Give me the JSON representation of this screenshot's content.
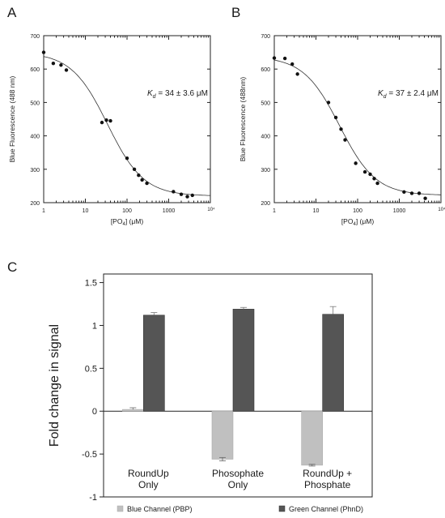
{
  "chart_data": [
    {
      "panel_label": "A",
      "type": "scatter",
      "x_scale": "log",
      "xlim": [
        1,
        10000
      ],
      "ylim": [
        200,
        700
      ],
      "x_ticks": [
        "1",
        "10",
        "100",
        "1000",
        "10⁴"
      ],
      "y_ticks": [
        "200",
        "300",
        "400",
        "500",
        "600",
        "700"
      ],
      "xlabel": "[PO₄] (μM)",
      "ylabel": "Blue Fluorescence (488 nm)",
      "annotation": "Kd = 34 ± 3.6 μM",
      "annotation_parts": {
        "symbol": "K",
        "subscript": "d",
        "value": " = 34 ± 3.6 μM"
      },
      "xlabel_parts": {
        "pre": "[PO",
        "subscript": "4",
        "post": "] (μM)"
      },
      "points": [
        {
          "x": 1,
          "y": 650
        },
        {
          "x": 1.7,
          "y": 617
        },
        {
          "x": 2.6,
          "y": 612
        },
        {
          "x": 3.5,
          "y": 597
        },
        {
          "x": 25,
          "y": 440
        },
        {
          "x": 32,
          "y": 447
        },
        {
          "x": 40,
          "y": 445
        },
        {
          "x": 100,
          "y": 333
        },
        {
          "x": 150,
          "y": 300
        },
        {
          "x": 190,
          "y": 282
        },
        {
          "x": 230,
          "y": 268
        },
        {
          "x": 300,
          "y": 258
        },
        {
          "x": 1300,
          "y": 233
        },
        {
          "x": 2000,
          "y": 225
        },
        {
          "x": 2800,
          "y": 218
        },
        {
          "x": 3700,
          "y": 222
        }
      ],
      "fit": {
        "kd": 34,
        "top": 650,
        "bottom": 220,
        "hill": 1.0
      }
    },
    {
      "panel_label": "B",
      "type": "scatter",
      "x_scale": "log",
      "xlim": [
        1,
        10000
      ],
      "ylim": [
        200,
        700
      ],
      "x_ticks": [
        "1",
        "10",
        "100",
        "1000",
        "10⁴"
      ],
      "y_ticks": [
        "200",
        "300",
        "400",
        "500",
        "600",
        "700"
      ],
      "xlabel": "[PO₄] (μM)",
      "ylabel": "Blue Fluorescence (488nm)",
      "annotation": "Kd = 37 ± 2.4 μM",
      "annotation_parts": {
        "symbol": "K",
        "subscript": "d",
        "value": " = 37 ± 2.4 μM"
      },
      "xlabel_parts": {
        "pre": "[PO",
        "subscript": "4",
        "post": "] (μM)"
      },
      "points": [
        {
          "x": 1,
          "y": 633
        },
        {
          "x": 1.8,
          "y": 632
        },
        {
          "x": 2.7,
          "y": 615
        },
        {
          "x": 3.6,
          "y": 585
        },
        {
          "x": 20,
          "y": 500
        },
        {
          "x": 30,
          "y": 455
        },
        {
          "x": 40,
          "y": 420
        },
        {
          "x": 50,
          "y": 388
        },
        {
          "x": 90,
          "y": 318
        },
        {
          "x": 150,
          "y": 292
        },
        {
          "x": 200,
          "y": 285
        },
        {
          "x": 250,
          "y": 272
        },
        {
          "x": 300,
          "y": 258
        },
        {
          "x": 1300,
          "y": 232
        },
        {
          "x": 2000,
          "y": 228
        },
        {
          "x": 3000,
          "y": 228
        },
        {
          "x": 4200,
          "y": 213
        }
      ],
      "fit": {
        "kd": 37,
        "top": 638,
        "bottom": 222,
        "hill": 1.0
      }
    },
    {
      "panel_label": "C",
      "type": "bar",
      "categories": [
        "RoundUp Only",
        "Phosophate Only",
        "RoundUp + Phosphate"
      ],
      "category_lines": [
        [
          "RoundUp",
          "Only"
        ],
        [
          "Phosophate",
          "Only"
        ],
        [
          "RoundUp +",
          "Phosphate"
        ]
      ],
      "ylabel": "Fold change in signal",
      "ylim": [
        -1,
        1.6
      ],
      "y_ticks": [
        "1.5",
        "1",
        "0.5",
        "0",
        "-0.5",
        "-1"
      ],
      "legend_position": "bottom",
      "series": [
        {
          "name": "Blue Channel (PBP)",
          "color": "#c0c0c0",
          "values": [
            0.02,
            -0.56,
            -0.63
          ],
          "errors": [
            0.02,
            0.02,
            0.01
          ]
        },
        {
          "name": "Green Channel (PhnD)",
          "color": "#555555",
          "values": [
            1.12,
            1.19,
            1.13
          ],
          "errors": [
            0.03,
            0.02,
            0.09
          ]
        }
      ]
    }
  ]
}
